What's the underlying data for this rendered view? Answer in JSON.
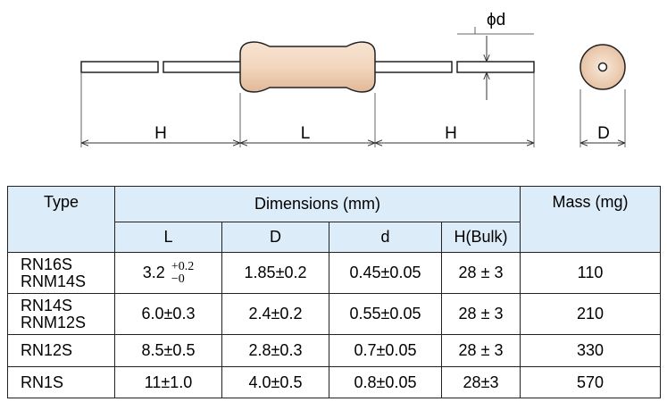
{
  "drawing": {
    "labels": {
      "lead_length": "H",
      "body_length": "L",
      "lead_diameter": "ϕd",
      "body_diameter": "D"
    }
  },
  "table": {
    "headers": {
      "type": "Type",
      "dimensions": "Dimensions (mm)",
      "mass": "Mass (mg)",
      "columns": [
        "L",
        "D",
        "d",
        "H(Bulk)"
      ]
    },
    "rows": [
      {
        "types": [
          "RN16S",
          "RNM14S"
        ],
        "L_base": "3.2",
        "L_tol_upper": "+0.2",
        "L_tol_lower": "−0",
        "D": "1.85±0.2",
        "d": "0.45±0.05",
        "H": "28 ± 3",
        "mass": "110"
      },
      {
        "types": [
          "RN14S",
          "RNM12S"
        ],
        "L": "6.0±0.3",
        "D": "2.4±0.2",
        "d": "0.55±0.05",
        "H": "28 ± 3",
        "mass": "210"
      },
      {
        "types": [
          "RN12S"
        ],
        "L": "8.5±0.5",
        "D": "2.8±0.3",
        "d": "0.7±0.05",
        "H": "28 ± 3",
        "mass": "330"
      },
      {
        "types": [
          "RN1S"
        ],
        "L": "11±1.0",
        "D": "4.0±0.5",
        "d": "0.8±0.05",
        "H": "28±3",
        "mass": "570"
      }
    ]
  }
}
